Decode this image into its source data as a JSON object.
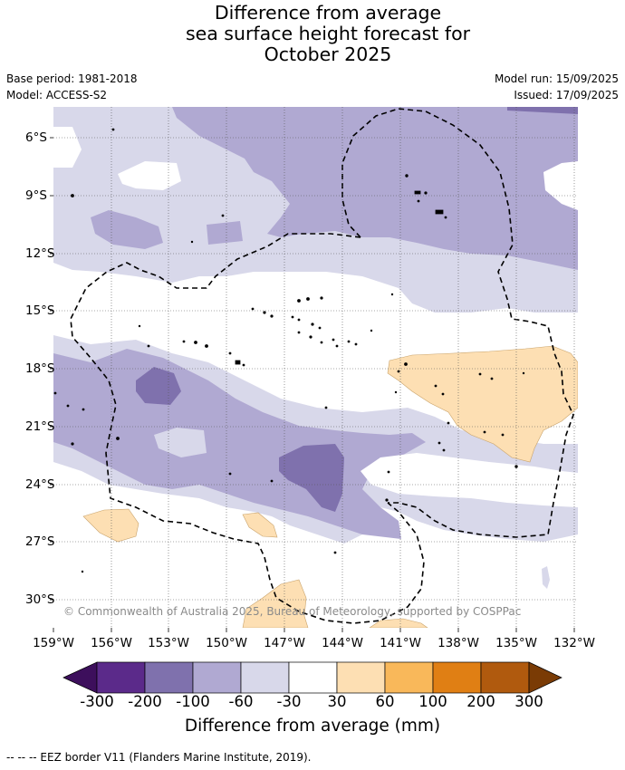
{
  "header": {
    "title_line1": "Difference from average",
    "title_line2": "sea surface height forecast for",
    "title_line3": "October 2025",
    "base_period": "Base period: 1981-2018",
    "model": "Model: ACCESS-S2",
    "model_run": "Model run: 15/09/2025",
    "issued": "Issued: 17/09/2025"
  },
  "map": {
    "lat_labels": [
      "6°S",
      "9°S",
      "12°S",
      "15°S",
      "18°S",
      "21°S",
      "24°S",
      "27°S",
      "30°S"
    ],
    "lon_labels": [
      "159°W",
      "156°W",
      "153°W",
      "150°W",
      "147°W",
      "144°W",
      "141°W",
      "138°W",
      "135°W",
      "132°W"
    ],
    "copyright": "© Commonwealth of Australia 2025, Bureau of Meteorology, supported by COSPPac"
  },
  "colorbar": {
    "ticks": [
      "-300",
      "-200",
      "-100",
      "-60",
      "-30",
      "30",
      "60",
      "100",
      "200",
      "300"
    ],
    "colors": [
      "#3d0f5c",
      "#5b2a8a",
      "#7f71ad",
      "#b0a9d2",
      "#d8d8ea",
      "#ffffff",
      "#fddfb3",
      "#f9b85a",
      "#e07f14",
      "#b05a0e",
      "#7a3b05"
    ],
    "title": "Difference from average (mm)"
  },
  "footnote": "--  --  -- EEZ border V11 (Flanders Marine Institute, 2019)."
}
